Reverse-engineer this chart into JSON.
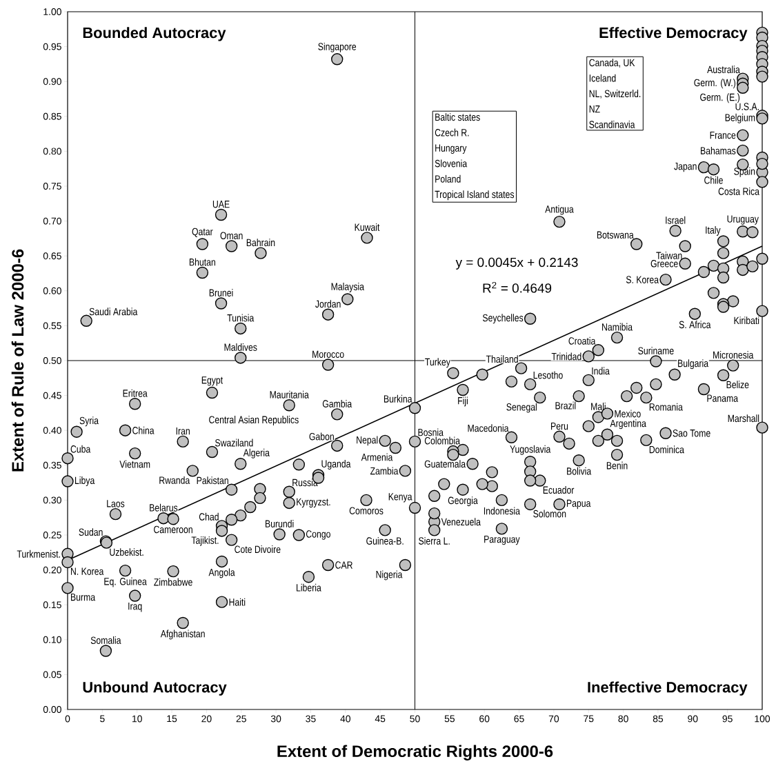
{
  "chart_data": {
    "type": "scatter",
    "xlabel": "Extent of Democratic Rights 2000-6",
    "ylabel": "Extent of Rule of Law 2000-6",
    "xlim": [
      0,
      100
    ],
    "ylim": [
      0,
      1
    ],
    "xticks": [
      0,
      5,
      10,
      15,
      20,
      25,
      30,
      35,
      40,
      45,
      50,
      55,
      60,
      65,
      70,
      75,
      80,
      85,
      90,
      95,
      100
    ],
    "yticks": [
      {
        "value": 0,
        "label": "0.00"
      },
      {
        "value": 0.05,
        "label": "0.05"
      },
      {
        "value": 0.1,
        "label": "0.10"
      },
      {
        "value": 0.15,
        "label": "0.15"
      },
      {
        "value": 0.2,
        "label": "0.20"
      },
      {
        "value": 0.25,
        "label": "0.25"
      },
      {
        "value": 0.3,
        "label": "0.30"
      },
      {
        "value": 0.35,
        "label": "0.35"
      },
      {
        "value": 0.4,
        "label": "0.40"
      },
      {
        "value": 0.45,
        "label": "0.45"
      },
      {
        "value": 0.5,
        "label": "0.50"
      },
      {
        "value": 0.55,
        "label": "0.55"
      },
      {
        "value": 0.6,
        "label": "0.60"
      },
      {
        "value": 0.65,
        "label": "0.65"
      },
      {
        "value": 0.7,
        "label": "0.70"
      },
      {
        "value": 0.75,
        "label": "0.75"
      },
      {
        "value": 0.8,
        "label": "0.80"
      },
      {
        "value": 0.85,
        "label": "0.85"
      },
      {
        "value": 0.9,
        "label": "0.90"
      },
      {
        "value": 0.95,
        "label": "0.95"
      },
      {
        "value": 1,
        "label": "1.00"
      }
    ],
    "ref_lines": [
      {
        "axis": "x",
        "value": 50
      },
      {
        "axis": "y",
        "value": 0.5
      }
    ],
    "series": [
      {
        "marker": "circle",
        "color": "#c0c0c0",
        "x": [
          38.8,
          22.1,
          19.4,
          23.6,
          27.8,
          19.4,
          43.1,
          22.1,
          40.3,
          37.5,
          2.7,
          24.9,
          24.9,
          37.5,
          20.8,
          9.7,
          31.9,
          38.8,
          1.3,
          8.3,
          16.6,
          20.8,
          9.7,
          38.8,
          45.7,
          0,
          24.9,
          18,
          36.1,
          0,
          23.6,
          31.9,
          31.9,
          43,
          6.9,
          13.8,
          15.2,
          22.2,
          22.2,
          23.6,
          30.5,
          33.3,
          45.7,
          5.5,
          5.6,
          0,
          8.3,
          0,
          15.2,
          22.2,
          37.5,
          34.7,
          0,
          9.7,
          22.2,
          16.6,
          5.5,
          50,
          50,
          47.2,
          48.6,
          50,
          48.6,
          55.5,
          65.3,
          56.9,
          66.6,
          68,
          75,
          76.4,
          79.1,
          75,
          73.6,
          84.7,
          95.8,
          87.4,
          94.4,
          83.3,
          91.6,
          76.4,
          77.7,
          77.7,
          79.1,
          83.3,
          86.1,
          100,
          70.8,
          73.6,
          63.9,
          56.9,
          66.6,
          68,
          58.3,
          56.9,
          62.5,
          66.6,
          70.8,
          52.8,
          52.8,
          62.5,
          66.6,
          70.8,
          81.9,
          87.5,
          88.9,
          88.9,
          86.1,
          94.4,
          97.2,
          90.3,
          100,
          91.6,
          93,
          97.2,
          97.2,
          100,
          100,
          100,
          100,
          97.2,
          97.2,
          97.2,
          33.3,
          36.1,
          27.7,
          27.7,
          26.3,
          24.9,
          23.6,
          59.7,
          63.9,
          84.7,
          81.9,
          80.5,
          75,
          76.4,
          79.1,
          72.2,
          55.5,
          55.5,
          66.6,
          66.6,
          61.1,
          61.1,
          59.7,
          54.2,
          52.8,
          52.8,
          94.4,
          93,
          94.4,
          91.6,
          94.4,
          97.2,
          97.2,
          98.6,
          100,
          93,
          95.8,
          94.4,
          94.4,
          98.6,
          97.2,
          100,
          100,
          100,
          100,
          100,
          100,
          100,
          100,
          100,
          100
        ],
        "values": [
          0.932,
          0.709,
          0.667,
          0.664,
          0.654,
          0.626,
          0.676,
          0.582,
          0.588,
          0.566,
          0.557,
          0.546,
          0.504,
          0.494,
          0.454,
          0.438,
          0.436,
          0.423,
          0.398,
          0.4,
          0.384,
          0.369,
          0.367,
          0.378,
          0.385,
          0.36,
          0.352,
          0.342,
          0.336,
          0.327,
          0.315,
          0.312,
          0.296,
          0.3,
          0.28,
          0.274,
          0.273,
          0.263,
          0.256,
          0.243,
          0.251,
          0.25,
          0.257,
          0.241,
          0.239,
          0.223,
          0.199,
          0.211,
          0.198,
          0.212,
          0.207,
          0.19,
          0.174,
          0.163,
          0.154,
          0.124,
          0.084,
          0.432,
          0.384,
          0.375,
          0.342,
          0.289,
          0.207,
          0.482,
          0.489,
          0.458,
          0.466,
          0.447,
          0.506,
          0.515,
          0.533,
          0.472,
          0.449,
          0.499,
          0.493,
          0.48,
          0.479,
          0.447,
          0.459,
          0.419,
          0.424,
          0.394,
          0.365,
          0.386,
          0.396,
          0.404,
          0.391,
          0.357,
          0.39,
          0.372,
          0.355,
          0.328,
          0.352,
          0.315,
          0.3,
          0.294,
          0.294,
          0.269,
          0.257,
          0.259,
          0.56,
          0.699,
          0.667,
          0.686,
          0.664,
          0.639,
          0.616,
          0.671,
          0.685,
          0.567,
          0.571,
          0.777,
          0.774,
          0.823,
          0.801,
          0.77,
          0.756,
          0.851,
          0.847,
          0.904,
          0.897,
          0.891,
          0.351,
          0.332,
          0.316,
          0.303,
          0.29,
          0.278,
          0.272,
          0.48,
          0.47,
          0.466,
          0.461,
          0.449,
          0.406,
          0.385,
          0.385,
          0.381,
          0.37,
          0.365,
          0.341,
          0.328,
          0.34,
          0.32,
          0.323,
          0.323,
          0.306,
          0.281,
          0.654,
          0.636,
          0.632,
          0.627,
          0.619,
          0.642,
          0.63,
          0.635,
          0.646,
          0.597,
          0.585,
          0.581,
          0.577,
          0.684,
          0.781,
          0.791,
          0.782,
          0.97,
          0.963,
          0.951,
          0.944,
          0.935,
          0.925,
          0.914,
          0.907
        ]
      },
      {
        "type": "line",
        "marker": "none",
        "color": "#000000",
        "x": [
          0,
          100
        ],
        "values": [
          0.214,
          0.664
        ]
      }
    ],
    "annotations": [
      "Bounded Autocracy",
      "Effective Democracy",
      "Unbound Autocracy",
      "Ineffective Democracy",
      "y = 0.0045x + 0.2143",
      "R$^{2}$ = 0.4649",
      "Baltic states",
      "Czech R.",
      "Hungary",
      "Slovenia",
      "Poland",
      "Tropical Island states",
      "Canada, UK",
      "Iceland",
      "NL, Switzerld.",
      "NZ",
      "Scandinavia",
      "Central Asian Republics",
      {
        "text": "Singapore",
        "x": 38.8,
        "y": 0.932
      },
      {
        "text": "UAE",
        "x": 22.1,
        "y": 0.709
      },
      {
        "text": "Qatar",
        "x": 19.4,
        "y": 0.667
      },
      {
        "text": "Oman",
        "x": 23.6,
        "y": 0.664
      },
      {
        "text": "Bahrain",
        "x": 27.8,
        "y": 0.654
      },
      {
        "text": "Bhutan",
        "x": 19.4,
        "y": 0.626
      },
      {
        "text": "Kuwait",
        "x": 43.1,
        "y": 0.676
      },
      {
        "text": "Brunei",
        "x": 22.1,
        "y": 0.582
      },
      {
        "text": "Malaysia",
        "x": 40.3,
        "y": 0.588
      },
      {
        "text": "Jordan",
        "x": 37.5,
        "y": 0.566
      },
      {
        "text": "Saudi Arabia",
        "x": 2.7,
        "y": 0.557
      },
      {
        "text": "Tunisia",
        "x": 24.9,
        "y": 0.546
      },
      {
        "text": "Maldives",
        "x": 24.9,
        "y": 0.504
      },
      {
        "text": "Morocco",
        "x": 37.5,
        "y": 0.494
      },
      {
        "text": "Egypt",
        "x": 20.8,
        "y": 0.454
      },
      {
        "text": "Eritrea",
        "x": 9.7,
        "y": 0.438
      },
      {
        "text": "Mauritania",
        "x": 31.9,
        "y": 0.436
      },
      {
        "text": "Gambia",
        "x": 38.8,
        "y": 0.423
      },
      {
        "text": "Syria",
        "x": 1.3,
        "y": 0.398
      },
      {
        "text": "China",
        "x": 8.3,
        "y": 0.4
      },
      {
        "text": "Iran",
        "x": 16.6,
        "y": 0.384
      },
      {
        "text": "Swaziland",
        "x": 20.8,
        "y": 0.369
      },
      {
        "text": "Vietnam",
        "x": 9.7,
        "y": 0.367
      },
      {
        "text": "Gabon",
        "x": 38.8,
        "y": 0.378
      },
      {
        "text": "Nepal",
        "x": 45.7,
        "y": 0.385
      },
      {
        "text": "Cuba",
        "x": 0,
        "y": 0.36
      },
      {
        "text": "Algeria",
        "x": 24.9,
        "y": 0.352
      },
      {
        "text": "Rwanda",
        "x": 18,
        "y": 0.342
      },
      {
        "text": "Uganda",
        "x": 36.1,
        "y": 0.336
      },
      {
        "text": "Libya",
        "x": 0,
        "y": 0.327
      },
      {
        "text": "Pakistan",
        "x": 23.6,
        "y": 0.315
      },
      {
        "text": "Russia",
        "x": 31.9,
        "y": 0.312
      },
      {
        "text": "Kyrgyzst.",
        "x": 31.9,
        "y": 0.296
      },
      {
        "text": "Comoros",
        "x": 43,
        "y": 0.3
      },
      {
        "text": "Laos",
        "x": 6.9,
        "y": 0.28
      },
      {
        "text": "Belarus",
        "x": 13.8,
        "y": 0.274
      },
      {
        "text": "Cameroon",
        "x": 15.2,
        "y": 0.273
      },
      {
        "text": "Chad",
        "x": 22.2,
        "y": 0.263
      },
      {
        "text": "Tajikist.",
        "x": 22.2,
        "y": 0.256
      },
      {
        "text": "Cote Divoire",
        "x": 23.6,
        "y": 0.243
      },
      {
        "text": "Burundi",
        "x": 30.5,
        "y": 0.251
      },
      {
        "text": "Congo",
        "x": 33.3,
        "y": 0.25
      },
      {
        "text": "Guinea-B.",
        "x": 45.7,
        "y": 0.257
      },
      {
        "text": "Sudan",
        "x": 5.5,
        "y": 0.241
      },
      {
        "text": "Uzbekist.",
        "x": 5.6,
        "y": 0.239
      },
      {
        "text": "Turkmenist.",
        "x": 0,
        "y": 0.223
      },
      {
        "text": "Eq. Guinea",
        "x": 8.3,
        "y": 0.199
      },
      {
        "text": "N. Korea",
        "x": 0,
        "y": 0.211
      },
      {
        "text": "Zimbabwe",
        "x": 15.2,
        "y": 0.198
      },
      {
        "text": "Angola",
        "x": 22.2,
        "y": 0.212
      },
      {
        "text": "CAR",
        "x": 37.5,
        "y": 0.207
      },
      {
        "text": "Liberia",
        "x": 34.7,
        "y": 0.19
      },
      {
        "text": "Burma",
        "x": 0,
        "y": 0.174
      },
      {
        "text": "Iraq",
        "x": 9.7,
        "y": 0.163
      },
      {
        "text": "Haiti",
        "x": 22.2,
        "y": 0.154
      },
      {
        "text": "Afghanistan",
        "x": 16.6,
        "y": 0.124
      },
      {
        "text": "Somalia",
        "x": 5.5,
        "y": 0.084
      },
      {
        "text": "Burkina",
        "x": 50,
        "y": 0.432
      },
      {
        "text": "Bosnia",
        "x": 50,
        "y": 0.384
      },
      {
        "text": "Armenia",
        "x": 47.2,
        "y": 0.375
      },
      {
        "text": "Zambia",
        "x": 48.6,
        "y": 0.342
      },
      {
        "text": "Kenya",
        "x": 50,
        "y": 0.289
      },
      {
        "text": "Nigeria",
        "x": 48.6,
        "y": 0.207
      },
      {
        "text": "Turkey",
        "x": 55.5,
        "y": 0.482
      },
      {
        "text": "Thailand",
        "x": 65.3,
        "y": 0.489
      },
      {
        "text": "Fiji",
        "x": 56.9,
        "y": 0.458
      },
      {
        "text": "Lesotho",
        "x": 66.6,
        "y": 0.466
      },
      {
        "text": "Senegal",
        "x": 68,
        "y": 0.447
      },
      {
        "text": "Trinidad",
        "x": 75,
        "y": 0.506
      },
      {
        "text": "Croatia",
        "x": 76.4,
        "y": 0.515
      },
      {
        "text": "Namibia",
        "x": 79.1,
        "y": 0.533
      },
      {
        "text": "India",
        "x": 75,
        "y": 0.472
      },
      {
        "text": "Brazil",
        "x": 73.6,
        "y": 0.449
      },
      {
        "text": "Suriname",
        "x": 84.7,
        "y": 0.499
      },
      {
        "text": "Micronesia",
        "x": 95.8,
        "y": 0.493
      },
      {
        "text": "Bulgaria",
        "x": 87.4,
        "y": 0.48
      },
      {
        "text": "Belize",
        "x": 94.4,
        "y": 0.479
      },
      {
        "text": "Romania",
        "x": 83.3,
        "y": 0.447
      },
      {
        "text": "Panama",
        "x": 91.6,
        "y": 0.459
      },
      {
        "text": "Mali",
        "x": 76.4,
        "y": 0.419
      },
      {
        "text": "Mexico",
        "x": 77.7,
        "y": 0.424
      },
      {
        "text": "Argentina",
        "x": 77.7,
        "y": 0.394
      },
      {
        "text": "Benin",
        "x": 79.1,
        "y": 0.365
      },
      {
        "text": "Dominica",
        "x": 83.3,
        "y": 0.386
      },
      {
        "text": "Sao Tome",
        "x": 86.1,
        "y": 0.396
      },
      {
        "text": "Marshall",
        "x": 100,
        "y": 0.404
      },
      {
        "text": "Peru",
        "x": 70.8,
        "y": 0.391
      },
      {
        "text": "Bolivia",
        "x": 73.6,
        "y": 0.357
      },
      {
        "text": "Macedonia",
        "x": 63.9,
        "y": 0.39
      },
      {
        "text": "Colombia",
        "x": 56.9,
        "y": 0.372
      },
      {
        "text": "Yugoslavia",
        "x": 66.6,
        "y": 0.355
      },
      {
        "text": "Ecuador",
        "x": 68,
        "y": 0.328
      },
      {
        "text": "Guatemala",
        "x": 58.3,
        "y": 0.352
      },
      {
        "text": "Georgia",
        "x": 56.9,
        "y": 0.315
      },
      {
        "text": "Indonesia",
        "x": 62.5,
        "y": 0.3
      },
      {
        "text": "Solomon",
        "x": 66.6,
        "y": 0.294
      },
      {
        "text": "Papua",
        "x": 70.8,
        "y": 0.294
      },
      {
        "text": "Venezuela",
        "x": 52.8,
        "y": 0.269
      },
      {
        "text": "Sierra L.",
        "x": 52.8,
        "y": 0.257
      },
      {
        "text": "Paraguay",
        "x": 62.5,
        "y": 0.259
      },
      {
        "text": "Seychelles",
        "x": 66.6,
        "y": 0.56
      },
      {
        "text": "Antigua",
        "x": 70.8,
        "y": 0.699
      },
      {
        "text": "Botswana",
        "x": 81.9,
        "y": 0.667
      },
      {
        "text": "Israel",
        "x": 87.5,
        "y": 0.686
      },
      {
        "text": "Taiwan",
        "x": 88.9,
        "y": 0.664
      },
      {
        "text": "Greece",
        "x": 88.9,
        "y": 0.639
      },
      {
        "text": "S. Korea",
        "x": 86.1,
        "y": 0.616
      },
      {
        "text": "Italy",
        "x": 94.4,
        "y": 0.671
      },
      {
        "text": "Uruguay",
        "x": 97.2,
        "y": 0.685
      },
      {
        "text": "S. Africa",
        "x": 90.3,
        "y": 0.567
      },
      {
        "text": "Kiribati",
        "x": 100,
        "y": 0.571
      },
      {
        "text": "Japan",
        "x": 91.6,
        "y": 0.777
      },
      {
        "text": "Chile",
        "x": 93,
        "y": 0.774
      },
      {
        "text": "France",
        "x": 97.2,
        "y": 0.823
      },
      {
        "text": "Bahamas",
        "x": 97.2,
        "y": 0.801
      },
      {
        "text": "Spain",
        "x": 100,
        "y": 0.77
      },
      {
        "text": "Costa Rica",
        "x": 100,
        "y": 0.756
      },
      {
        "text": "U.S.A.",
        "x": 100,
        "y": 0.851
      },
      {
        "text": "Belgium",
        "x": 100,
        "y": 0.847
      },
      {
        "text": "Australia",
        "x": 97.2,
        "y": 0.904
      },
      {
        "text": "Germ. (W.)",
        "x": 97.2,
        "y": 0.897
      },
      {
        "text": "Germ. (E.)",
        "x": 97.2,
        "y": 0.891
      }
    ]
  }
}
